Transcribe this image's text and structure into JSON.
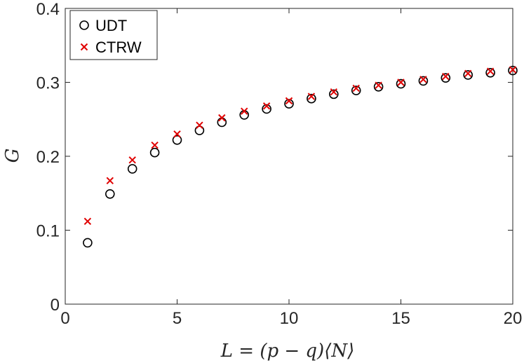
{
  "chart_data": {
    "type": "scatter",
    "xlabel": "L = (p − q)⟨N⟩",
    "ylabel": "G",
    "xlim": [
      0,
      20
    ],
    "ylim": [
      0,
      0.4
    ],
    "x_ticks": [
      "0",
      "5",
      "10",
      "15",
      "20"
    ],
    "y_ticks": [
      "0",
      "0.1",
      "0.2",
      "0.3",
      "0.4"
    ],
    "grid": false,
    "legend_position": "top-left",
    "series": [
      {
        "name": "UDT",
        "marker": "circle",
        "color": "#000000",
        "x": [
          1,
          2,
          3,
          4,
          5,
          6,
          7,
          8,
          9,
          10,
          11,
          12,
          13,
          14,
          15,
          16,
          17,
          18,
          19,
          20
        ],
        "y": [
          0.083,
          0.149,
          0.183,
          0.205,
          0.222,
          0.235,
          0.246,
          0.256,
          0.264,
          0.271,
          0.278,
          0.284,
          0.289,
          0.294,
          0.298,
          0.302,
          0.306,
          0.31,
          0.313,
          0.316
        ]
      },
      {
        "name": "CTRW",
        "marker": "x",
        "color": "#e00000",
        "x": [
          1,
          2,
          3,
          4,
          5,
          6,
          7,
          8,
          9,
          10,
          11,
          12,
          13,
          14,
          15,
          16,
          17,
          18,
          19,
          20
        ],
        "y": [
          0.112,
          0.167,
          0.195,
          0.215,
          0.23,
          0.242,
          0.252,
          0.261,
          0.268,
          0.275,
          0.281,
          0.287,
          0.292,
          0.296,
          0.3,
          0.304,
          0.308,
          0.312,
          0.315,
          0.317
        ]
      }
    ]
  }
}
